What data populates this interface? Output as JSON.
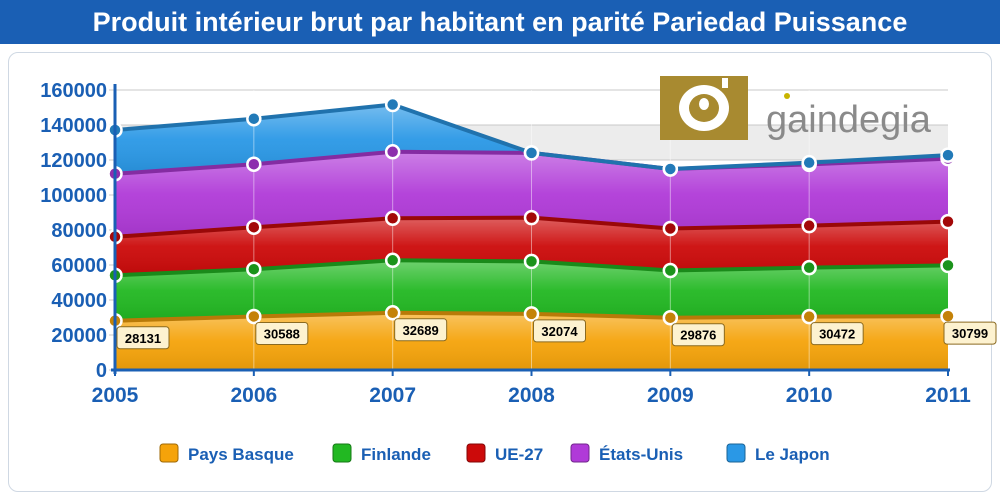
{
  "header": {
    "title": "Produit intérieur brut par habitant en parité Pariedad Puissance"
  },
  "logo": {
    "text": "gaindegia",
    "icon": "gaindegia-logo-icon",
    "color": "#a88a30"
  },
  "colors": {
    "title_bg": "#1a5fb4",
    "axis": "#1a5fb4"
  },
  "chart_data": {
    "type": "area",
    "stacked": true,
    "x": [
      "2005",
      "2006",
      "2007",
      "2008",
      "2009",
      "2010",
      "2011"
    ],
    "ylim": [
      0,
      160000
    ],
    "yticks": [
      0,
      20000,
      40000,
      60000,
      80000,
      100000,
      120000,
      140000,
      160000
    ],
    "grid": true,
    "legend_position": "bottom",
    "series": [
      {
        "name": "Pays Basque",
        "color": "#f5a30a",
        "values": [
          28131,
          30588,
          32689,
          32074,
          29876,
          30472,
          30799
        ]
      },
      {
        "name": "Finlande",
        "color": "#22b822",
        "values": [
          26000,
          27000,
          30000,
          30000,
          27000,
          28000,
          29000
        ]
      },
      {
        "name": "UE-27",
        "color": "#cc0a0a",
        "values": [
          22000,
          24000,
          24000,
          25000,
          24000,
          24000,
          25000
        ]
      },
      {
        "name": "États-Unis",
        "color": "#b03ad8",
        "values": [
          36000,
          36000,
          38000,
          37000,
          34000,
          35000,
          36000
        ]
      },
      {
        "name": "Le Japon",
        "color": "#2a98e6",
        "values": [
          25000,
          26000,
          27000,
          0,
          0,
          1000,
          2000
        ]
      }
    ],
    "data_labels": {
      "series": "Pays Basque",
      "values": [
        "28131",
        "30588",
        "32689",
        "32074",
        "29876",
        "30472",
        "30799"
      ]
    }
  }
}
